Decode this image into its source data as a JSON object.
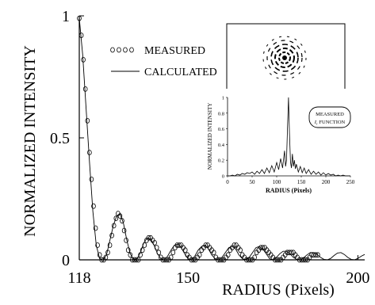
{
  "chart_data": [
    {
      "type": "line",
      "xlabel": "RADIUS (Pixels)",
      "ylabel": "NORMALIZED INTENSITY",
      "xlim": [
        118,
        202
      ],
      "ylim": [
        0,
        1
      ],
      "x_ticks": [
        "118",
        "150",
        "200"
      ],
      "y_ticks": [
        "0",
        "0.5",
        "1"
      ],
      "legend": {
        "placement": "top-left",
        "entries": [
          "MEASURED",
          "CALCULATED"
        ]
      },
      "grid": false,
      "series": [
        {
          "name": "MEASURED",
          "marker": "circle",
          "x": [
            118.0,
            118.6,
            119.2,
            119.8,
            120.4,
            121.0,
            121.6,
            122.2,
            122.8,
            123.4,
            124.0,
            124.6,
            125.2,
            125.8,
            126.4,
            127.0,
            127.6,
            128.2,
            128.8,
            129.4,
            130.0,
            130.6,
            131.2,
            131.8,
            132.4,
            133.0,
            133.6,
            134.2,
            134.8,
            135.4,
            136.0,
            136.6,
            137.2,
            137.8,
            138.4,
            139.0,
            139.6,
            140.2,
            140.8,
            141.4,
            142.0,
            142.6,
            143.2,
            143.8,
            144.4,
            145.0,
            145.6,
            146.2,
            146.8,
            147.4,
            148.0,
            148.6,
            149.2,
            149.8,
            150.4,
            151.0,
            151.6,
            152.2,
            152.8,
            153.4,
            154.0,
            154.6,
            155.2,
            155.8,
            156.4,
            157.0,
            157.6,
            158.2,
            158.8,
            159.4,
            160.0,
            160.6,
            161.2,
            161.8,
            162.4,
            163.0,
            163.6,
            164.2,
            164.8,
            165.4,
            166.0,
            166.6,
            167.2,
            167.8,
            168.4,
            169.0,
            169.6,
            170.2,
            170.8,
            171.4,
            172.0,
            172.6,
            173.2,
            173.8,
            174.4,
            175.0,
            175.6,
            176.2,
            176.8,
            177.4,
            178.0,
            178.6,
            179.2,
            179.8,
            180.4,
            181.0,
            181.6,
            182.2,
            182.8,
            183.4,
            184.0,
            184.6,
            185.2,
            185.8,
            186.4,
            187.0,
            187.6,
            188.2
          ],
          "y": [
            0.99,
            0.92,
            0.82,
            0.7,
            0.57,
            0.44,
            0.33,
            0.22,
            0.13,
            0.06,
            0.02,
            0.0,
            0.0,
            0.01,
            0.03,
            0.06,
            0.1,
            0.14,
            0.17,
            0.19,
            0.18,
            0.16,
            0.12,
            0.08,
            0.04,
            0.02,
            0.0,
            0.0,
            0.0,
            0.0,
            0.02,
            0.04,
            0.06,
            0.08,
            0.09,
            0.09,
            0.08,
            0.07,
            0.05,
            0.03,
            0.01,
            0.0,
            0.0,
            0.0,
            0.0,
            0.01,
            0.03,
            0.05,
            0.06,
            0.06,
            0.06,
            0.05,
            0.04,
            0.02,
            0.01,
            0.0,
            0.0,
            0.0,
            0.01,
            0.02,
            0.04,
            0.05,
            0.06,
            0.06,
            0.05,
            0.04,
            0.03,
            0.01,
            0.0,
            0.0,
            0.0,
            0.0,
            0.01,
            0.02,
            0.04,
            0.05,
            0.06,
            0.06,
            0.05,
            0.04,
            0.02,
            0.01,
            0.0,
            0.0,
            0.0,
            0.0,
            0.01,
            0.03,
            0.04,
            0.05,
            0.05,
            0.05,
            0.04,
            0.03,
            0.02,
            0.01,
            0.0,
            0.0,
            0.0,
            0.0,
            0.01,
            0.02,
            0.03,
            0.03,
            0.03,
            0.03,
            0.02,
            0.01,
            0.0,
            0.0,
            0.0,
            0.0,
            0.0,
            0.01,
            0.02,
            0.02,
            0.02,
            0.02
          ]
        },
        {
          "name": "CALCULATED",
          "marker": "none",
          "x": [
            118,
            119,
            120,
            121,
            122,
            123,
            124,
            125,
            126,
            127,
            128,
            129,
            130,
            131,
            132,
            133,
            134,
            135,
            136,
            137,
            138,
            139,
            140,
            141,
            142,
            143,
            144,
            145,
            146,
            147,
            148,
            149,
            150,
            151,
            152,
            153,
            154,
            155,
            156,
            157,
            158,
            159,
            160,
            161,
            162,
            163,
            164,
            165,
            166,
            167,
            168,
            169,
            170,
            171,
            172,
            173,
            174,
            175,
            176,
            177,
            178,
            179,
            180,
            181,
            182,
            183,
            184,
            185,
            186,
            187,
            188,
            189,
            190,
            191,
            192,
            193,
            194,
            195,
            196,
            197,
            198,
            199,
            200,
            201,
            202
          ],
          "y": [
            0.99,
            0.84,
            0.62,
            0.4,
            0.2,
            0.06,
            0.005,
            0.0,
            0.02,
            0.08,
            0.14,
            0.18,
            0.19,
            0.15,
            0.08,
            0.025,
            0.0,
            0.005,
            0.03,
            0.07,
            0.09,
            0.085,
            0.06,
            0.025,
            0.005,
            0.0,
            0.015,
            0.04,
            0.06,
            0.065,
            0.05,
            0.025,
            0.005,
            0.0,
            0.015,
            0.04,
            0.055,
            0.06,
            0.045,
            0.02,
            0.005,
            0.0,
            0.01,
            0.03,
            0.05,
            0.055,
            0.045,
            0.02,
            0.005,
            0.0,
            0.01,
            0.03,
            0.05,
            0.055,
            0.045,
            0.025,
            0.005,
            0.0,
            0.01,
            0.025,
            0.035,
            0.035,
            0.025,
            0.01,
            0.002,
            0.0,
            0.008,
            0.02,
            0.03,
            0.03,
            0.022,
            0.01,
            0.002,
            0.0,
            0.006,
            0.018,
            0.028,
            0.03,
            0.022,
            0.01,
            0.002,
            0.0,
            0.006,
            0.015,
            0.022
          ]
        }
      ]
    },
    {
      "type": "line",
      "xlabel": "RADIUS (Pixels)",
      "ylabel": "NORMALIZED INTENSITY",
      "xlim": [
        0,
        250
      ],
      "ylim": [
        0,
        1
      ],
      "x_ticks": [
        "0",
        "50",
        "100",
        "150",
        "200",
        "250"
      ],
      "y_ticks": [
        "0",
        "0.2",
        "0.4",
        "0.6",
        "0.8",
        "1"
      ],
      "annotation": [
        "MEASURED",
        "I",
        "r",
        "FUNCTION"
      ],
      "series": [
        {
          "name": "MEASURED",
          "x": [
            0,
            5,
            10,
            15,
            20,
            25,
            30,
            35,
            40,
            45,
            50,
            55,
            60,
            65,
            70,
            75,
            80,
            85,
            90,
            95,
            100,
            104,
            108,
            112,
            116,
            118,
            120,
            122,
            124,
            126,
            128,
            130,
            132,
            134,
            136,
            138,
            140,
            144,
            148,
            152,
            156,
            160,
            165,
            170,
            175,
            180,
            185,
            190,
            195,
            200,
            205,
            210,
            215,
            220,
            225,
            230,
            235,
            240,
            245,
            250
          ],
          "y": [
            0.0,
            0.0,
            0.01,
            0.0,
            0.02,
            0.01,
            0.03,
            0.02,
            0.04,
            0.03,
            0.05,
            0.02,
            0.06,
            0.03,
            0.08,
            0.03,
            0.1,
            0.04,
            0.13,
            0.05,
            0.17,
            0.08,
            0.22,
            0.1,
            0.32,
            0.12,
            0.2,
            0.6,
            1.0,
            0.55,
            0.18,
            0.1,
            0.28,
            0.12,
            0.2,
            0.09,
            0.15,
            0.05,
            0.12,
            0.04,
            0.1,
            0.03,
            0.08,
            0.02,
            0.06,
            0.02,
            0.05,
            0.01,
            0.04,
            0.01,
            0.03,
            0.01,
            0.02,
            0.0,
            0.01,
            0.0,
            0.01,
            0.0,
            0.0,
            0.0
          ]
        }
      ]
    }
  ]
}
